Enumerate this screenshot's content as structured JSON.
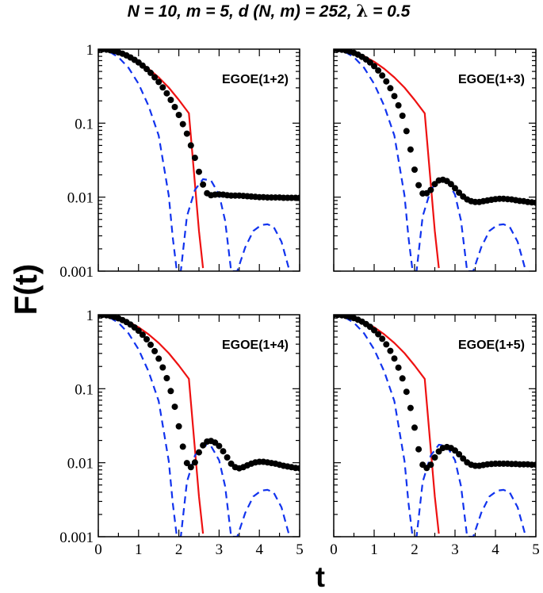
{
  "figure": {
    "title_parts": [
      "N = 10, m = 5, d (N, m) = 252, ",
      "λ",
      "  = 0.5"
    ],
    "ylabel": "F(t)",
    "xlabel": "t"
  },
  "chart_data": {
    "type": "line",
    "xlim": [
      0,
      5
    ],
    "ylim": [
      0.001,
      1
    ],
    "yscale": "log",
    "x_ticks": [
      "0",
      "1",
      "2",
      "3",
      "4",
      "5"
    ],
    "y_ticks": [
      "1",
      "0.1",
      "0.01",
      "0.001"
    ],
    "colors": {
      "solid": "#ee1111",
      "dashed": "#1133ee",
      "points": "#000000"
    },
    "series_common": [
      {
        "name": "solid-red (Gaussian)",
        "style": "solid",
        "color": "#ee1111",
        "x": [
          0,
          0.25,
          0.5,
          0.75,
          1.0,
          1.25,
          1.5,
          1.75,
          2.0,
          2.25,
          2.5,
          2.6
        ],
        "y": [
          1.0,
          0.976,
          0.907,
          0.803,
          0.677,
          0.543,
          0.415,
          0.302,
          0.206,
          0.136,
          0.0035,
          0.0011
        ]
      },
      {
        "name": "dashed-blue (semicircle)",
        "style": "dashed",
        "color": "#1133ee",
        "x": [
          0,
          0.25,
          0.5,
          0.75,
          1.0,
          1.25,
          1.5,
          1.75,
          1.85,
          1.95,
          2.05,
          2.2,
          2.4,
          2.6,
          2.8,
          3.0,
          3.15,
          3.3,
          3.45,
          3.65,
          3.85,
          4.05,
          4.2,
          4.35,
          4.55,
          4.75
        ],
        "y": [
          1.0,
          0.94,
          0.78,
          0.56,
          0.34,
          0.17,
          0.068,
          0.0105,
          0.0028,
          0.001,
          0.001,
          0.0055,
          0.0125,
          0.0175,
          0.0168,
          0.0108,
          0.0048,
          0.001,
          0.001,
          0.0021,
          0.0035,
          0.0042,
          0.0043,
          0.004,
          0.0025,
          0.001
        ]
      }
    ],
    "panels": [
      {
        "label": "EGOE(1+2)",
        "points": {
          "x": [
            0,
            0.1,
            0.2,
            0.3,
            0.4,
            0.5,
            0.6,
            0.7,
            0.8,
            0.9,
            1.0,
            1.1,
            1.2,
            1.3,
            1.4,
            1.5,
            1.6,
            1.7,
            1.8,
            1.9,
            2.0,
            2.1,
            2.2,
            2.3,
            2.4,
            2.5,
            2.6,
            2.7,
            2.8,
            2.9,
            3.0,
            3.1,
            3.2,
            3.3,
            3.4,
            3.5,
            3.6,
            3.7,
            3.8,
            3.9,
            4.0,
            4.1,
            4.2,
            4.3,
            4.4,
            4.5,
            4.6,
            4.7,
            4.8,
            4.9,
            5.0
          ],
          "y": [
            1.0,
            0.996,
            0.985,
            0.966,
            0.94,
            0.907,
            0.868,
            0.822,
            0.772,
            0.717,
            0.66,
            0.6,
            0.539,
            0.478,
            0.417,
            0.36,
            0.304,
            0.253,
            0.206,
            0.165,
            0.129,
            0.097,
            0.072,
            0.05,
            0.034,
            0.022,
            0.0148,
            0.0113,
            0.0106,
            0.0108,
            0.0109,
            0.0108,
            0.0106,
            0.0105,
            0.0105,
            0.0105,
            0.0104,
            0.0103,
            0.0102,
            0.0101,
            0.01,
            0.01,
            0.0099,
            0.0099,
            0.0099,
            0.0099,
            0.0098,
            0.0098,
            0.0098,
            0.0098,
            0.0098
          ]
        }
      },
      {
        "label": "EGOE(1+3)",
        "points": {
          "x": [
            0,
            0.1,
            0.2,
            0.3,
            0.4,
            0.5,
            0.6,
            0.7,
            0.8,
            0.9,
            1.0,
            1.1,
            1.2,
            1.3,
            1.4,
            1.5,
            1.6,
            1.7,
            1.8,
            1.9,
            2.0,
            2.1,
            2.2,
            2.3,
            2.4,
            2.5,
            2.6,
            2.7,
            2.8,
            2.9,
            3.0,
            3.1,
            3.2,
            3.3,
            3.4,
            3.5,
            3.6,
            3.7,
            3.8,
            3.9,
            4.0,
            4.1,
            4.2,
            4.3,
            4.4,
            4.5,
            4.6,
            4.7,
            4.8,
            4.9,
            5.0
          ],
          "y": [
            1.0,
            0.996,
            0.982,
            0.96,
            0.929,
            0.89,
            0.843,
            0.788,
            0.726,
            0.66,
            0.59,
            0.515,
            0.44,
            0.366,
            0.296,
            0.232,
            0.174,
            0.126,
            0.078,
            0.044,
            0.0235,
            0.0145,
            0.0112,
            0.0113,
            0.0125,
            0.015,
            0.0168,
            0.0172,
            0.0165,
            0.015,
            0.0132,
            0.0115,
            0.0102,
            0.0093,
            0.0088,
            0.0086,
            0.0086,
            0.0088,
            0.009,
            0.0092,
            0.0094,
            0.0095,
            0.0095,
            0.0094,
            0.0093,
            0.0091,
            0.0089,
            0.0088,
            0.0086,
            0.0085,
            0.0084
          ]
        }
      },
      {
        "label": "EGOE(1+4)",
        "points": {
          "x": [
            0,
            0.1,
            0.2,
            0.3,
            0.4,
            0.5,
            0.6,
            0.7,
            0.8,
            0.9,
            1.0,
            1.1,
            1.2,
            1.3,
            1.4,
            1.5,
            1.6,
            1.7,
            1.8,
            1.9,
            2.0,
            2.1,
            2.2,
            2.3,
            2.4,
            2.5,
            2.6,
            2.7,
            2.8,
            2.9,
            3.0,
            3.1,
            3.2,
            3.3,
            3.4,
            3.5,
            3.6,
            3.7,
            3.8,
            3.9,
            4.0,
            4.1,
            4.2,
            4.3,
            4.4,
            4.5,
            4.6,
            4.7,
            4.8,
            4.9,
            5.0
          ],
          "y": [
            1.0,
            0.996,
            0.983,
            0.962,
            0.932,
            0.894,
            0.848,
            0.795,
            0.737,
            0.674,
            0.607,
            0.536,
            0.465,
            0.393,
            0.322,
            0.255,
            0.194,
            0.139,
            0.093,
            0.057,
            0.031,
            0.0165,
            0.0099,
            0.0087,
            0.0101,
            0.0138,
            0.0172,
            0.0193,
            0.0197,
            0.0187,
            0.0168,
            0.0143,
            0.0118,
            0.0097,
            0.0087,
            0.0084,
            0.0087,
            0.0092,
            0.0097,
            0.0101,
            0.0103,
            0.0103,
            0.0101,
            0.0099,
            0.0097,
            0.0094,
            0.0091,
            0.0089,
            0.0087,
            0.0085,
            0.0084
          ]
        }
      },
      {
        "label": "EGOE(1+5)",
        "points": {
          "x": [
            0,
            0.1,
            0.2,
            0.3,
            0.4,
            0.5,
            0.6,
            0.7,
            0.8,
            0.9,
            1.0,
            1.1,
            1.2,
            1.3,
            1.4,
            1.5,
            1.6,
            1.7,
            1.8,
            1.9,
            2.0,
            2.1,
            2.2,
            2.3,
            2.4,
            2.5,
            2.6,
            2.7,
            2.8,
            2.9,
            3.0,
            3.1,
            3.2,
            3.3,
            3.4,
            3.5,
            3.6,
            3.7,
            3.8,
            3.9,
            4.0,
            4.1,
            4.2,
            4.3,
            4.4,
            4.5,
            4.6,
            4.7,
            4.8,
            4.9,
            5.0
          ],
          "y": [
            1.0,
            0.996,
            0.984,
            0.964,
            0.936,
            0.9,
            0.856,
            0.806,
            0.748,
            0.685,
            0.617,
            0.545,
            0.472,
            0.397,
            0.325,
            0.256,
            0.193,
            0.138,
            0.091,
            0.055,
            0.0298,
            0.0152,
            0.0094,
            0.0085,
            0.0094,
            0.0118,
            0.0142,
            0.0158,
            0.0163,
            0.0158,
            0.0146,
            0.013,
            0.0114,
            0.0101,
            0.0094,
            0.0091,
            0.0091,
            0.0093,
            0.0095,
            0.0096,
            0.0097,
            0.0097,
            0.0097,
            0.0097,
            0.0096,
            0.0096,
            0.0095,
            0.0095,
            0.0095,
            0.0094,
            0.0094
          ]
        }
      }
    ]
  }
}
